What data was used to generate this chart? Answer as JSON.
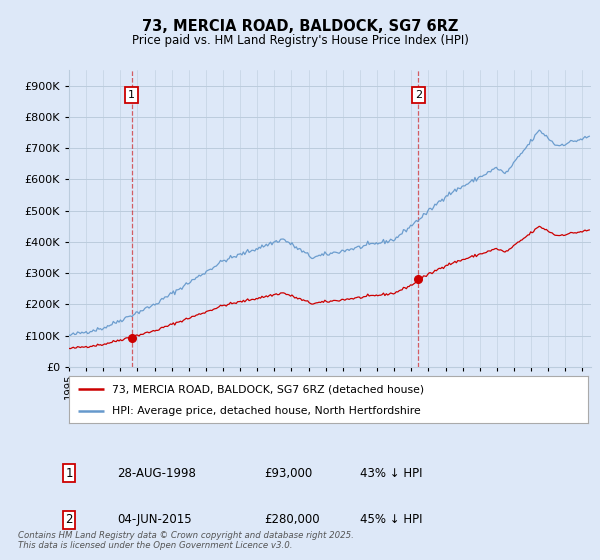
{
  "title": "73, MERCIA ROAD, BALDOCK, SG7 6RZ",
  "subtitle": "Price paid vs. HM Land Registry's House Price Index (HPI)",
  "legend_line1": "73, MERCIA ROAD, BALDOCK, SG7 6RZ (detached house)",
  "legend_line2": "HPI: Average price, detached house, North Hertfordshire",
  "annotation1_date": "28-AUG-1998",
  "annotation1_price": "£93,000",
  "annotation1_hpi": "43% ↓ HPI",
  "annotation2_date": "04-JUN-2015",
  "annotation2_price": "£280,000",
  "annotation2_hpi": "45% ↓ HPI",
  "footnote": "Contains HM Land Registry data © Crown copyright and database right 2025.\nThis data is licensed under the Open Government Licence v3.0.",
  "ylim": [
    0,
    950000
  ],
  "yticks": [
    0,
    100000,
    200000,
    300000,
    400000,
    500000,
    600000,
    700000,
    800000,
    900000
  ],
  "xlim_start": 1995.0,
  "xlim_end": 2025.5,
  "sale1_x": 1998.66,
  "sale1_y": 93000,
  "sale2_x": 2015.42,
  "sale2_y": 280000,
  "red_color": "#cc0000",
  "blue_color": "#6699cc",
  "vline_color": "#cc0000",
  "bg_color": "#dde8f8",
  "plot_bg": "#dde8f8",
  "grid_color": "#bbccdd"
}
